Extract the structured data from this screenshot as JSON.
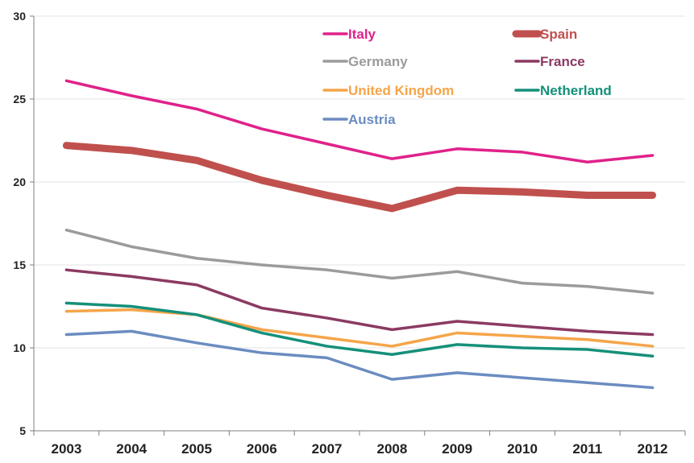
{
  "chart_data": {
    "type": "line",
    "x": [
      "2003",
      "2004",
      "2005",
      "2006",
      "2007",
      "2008",
      "2009",
      "2010",
      "2011",
      "2012"
    ],
    "ylim": [
      5,
      30
    ],
    "yticks": [
      5,
      10,
      15,
      20,
      25,
      30
    ],
    "grid": "horizontal",
    "legend_position": "top-right",
    "series": [
      {
        "name": "Italy",
        "color": "#e0218a",
        "values": [
          26.1,
          25.2,
          24.4,
          23.2,
          22.3,
          21.4,
          22.0,
          21.8,
          21.2,
          21.6
        ]
      },
      {
        "name": "Spain",
        "color": "#c0504d",
        "values": [
          22.2,
          21.9,
          21.3,
          20.1,
          19.2,
          18.4,
          19.5,
          19.4,
          19.2,
          19.2
        ]
      },
      {
        "name": "Germany",
        "color": "#9b9b9b",
        "values": [
          17.1,
          16.1,
          15.4,
          15.0,
          14.7,
          14.2,
          14.6,
          13.9,
          13.7,
          13.3
        ]
      },
      {
        "name": "France",
        "color": "#8b3a62",
        "values": [
          14.7,
          14.3,
          13.8,
          12.4,
          11.8,
          11.1,
          11.6,
          11.3,
          11.0,
          10.8
        ]
      },
      {
        "name": "United Kingdom",
        "color": "#f5a54a",
        "values": [
          12.2,
          12.3,
          12.0,
          11.1,
          10.6,
          10.1,
          10.9,
          10.7,
          10.5,
          10.1
        ]
      },
      {
        "name": "Netherland",
        "color": "#14907a",
        "values": [
          12.7,
          12.5,
          12.0,
          10.9,
          10.1,
          9.6,
          10.2,
          10.0,
          9.9,
          9.5
        ]
      },
      {
        "name": "Austria",
        "color": "#6b8cc1",
        "values": [
          10.8,
          11.0,
          10.3,
          9.7,
          9.4,
          8.1,
          8.5,
          8.2,
          7.9,
          7.6
        ]
      }
    ]
  }
}
